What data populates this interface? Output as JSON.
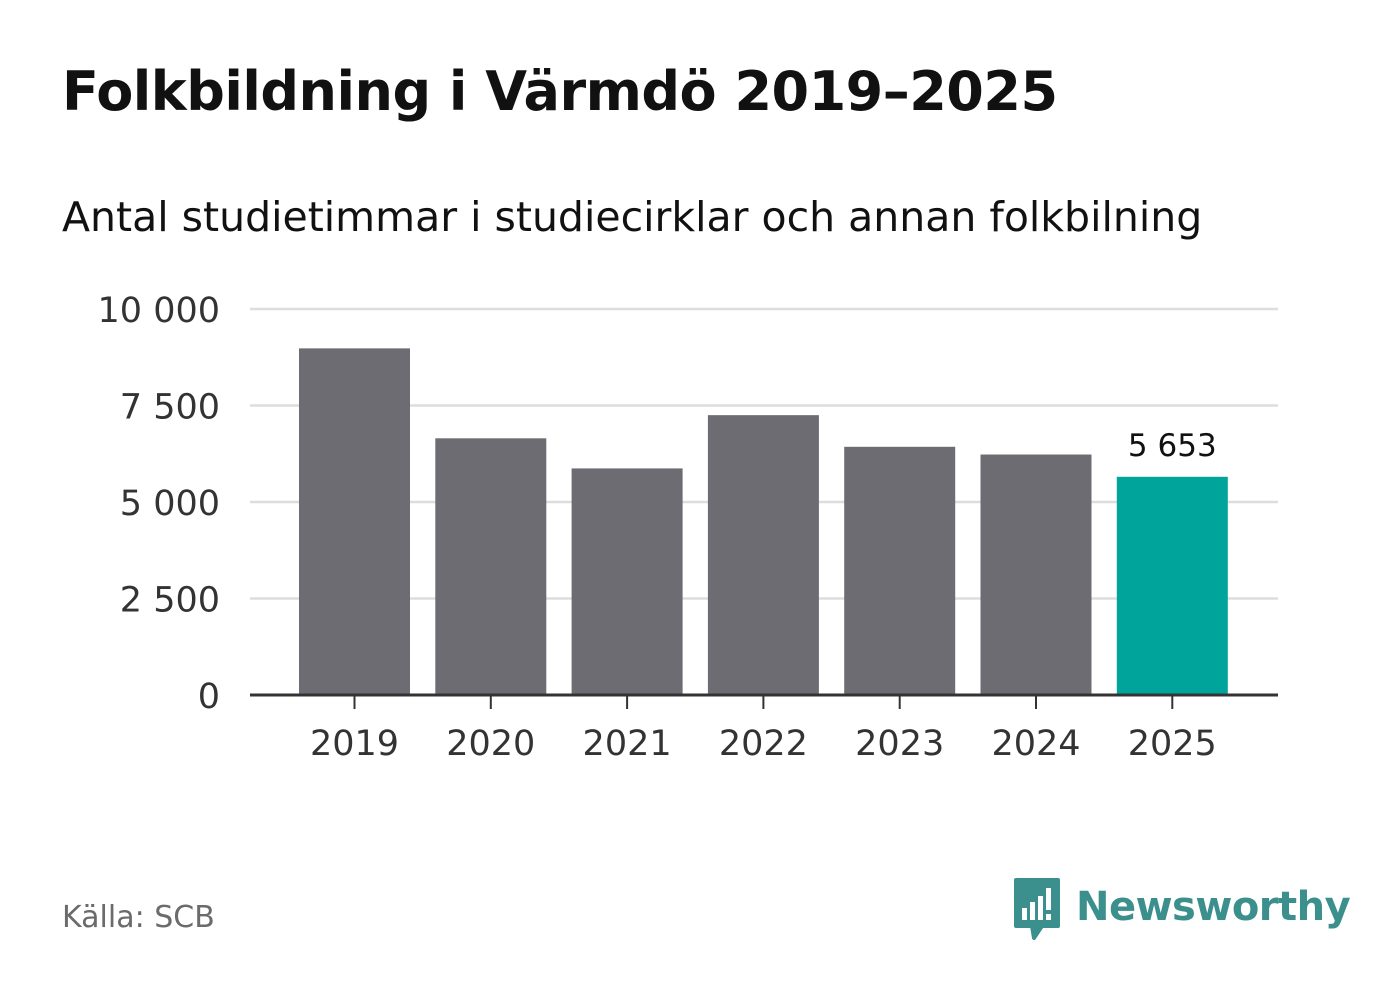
{
  "title": "Folkbildning i Värmdö 2019–2025",
  "subtitle": "Antal studietimmar i studiecirklar och annan folkbilning",
  "source": "Källa: SCB",
  "brand": {
    "name": "Newsworthy",
    "icon": "newsworthy-logo-icon",
    "color": "#3b8f8c"
  },
  "colors": {
    "bar": "#6d6c73",
    "highlight": "#00a49b",
    "grid": "#dddddd",
    "axis": "#333333",
    "text": "#333333"
  },
  "chart_data": {
    "type": "bar",
    "categories": [
      "2019",
      "2020",
      "2021",
      "2022",
      "2023",
      "2024",
      "2025"
    ],
    "values": [
      8980,
      6650,
      5870,
      7250,
      6430,
      6230,
      5653
    ],
    "ylim": [
      0,
      10000
    ],
    "yticks": [
      0,
      2500,
      5000,
      7500,
      10000
    ],
    "ytick_labels": [
      "0",
      "2 500",
      "5 000",
      "7 500",
      "10 000"
    ],
    "highlight_index": 6,
    "data_labels": [
      {
        "index": 6,
        "text": "5 653"
      }
    ],
    "grid": true,
    "legend": "none",
    "xlabel": "",
    "ylabel": ""
  }
}
